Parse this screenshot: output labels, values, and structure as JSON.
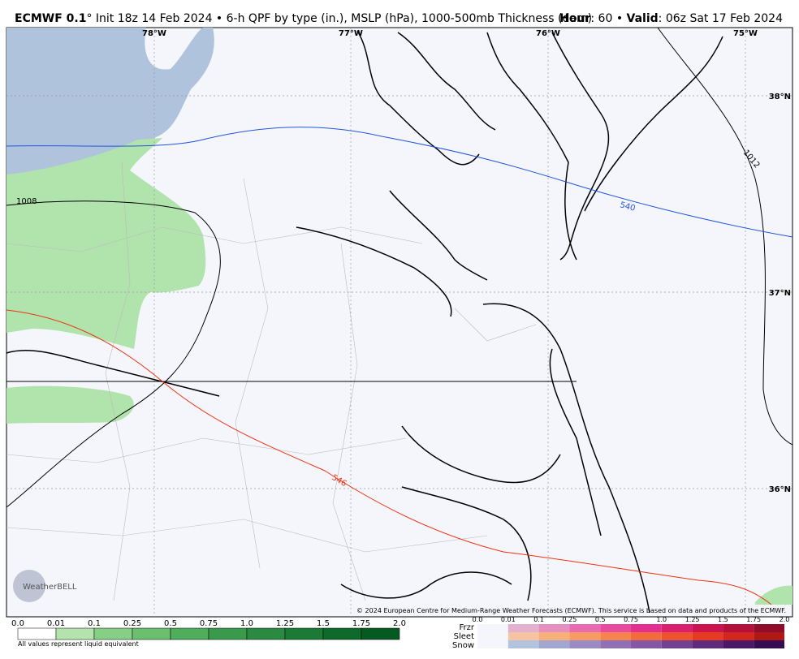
{
  "header": {
    "model": "ECMWF 0.1",
    "title": "° Init 18z 14 Feb 2024 • 6-h QPF by type (in.), MSLP (hPa), 1000-500mb Thickness (dam)",
    "hour_label": "Hour",
    "hour": ": 60 • ",
    "valid_label": "Valid",
    "valid": ": 06z Sat 17 Feb 2024"
  },
  "map": {
    "longitudes": [
      "78°W",
      "77°W",
      "76°W",
      "75°W"
    ],
    "latitudes": [
      "38°N",
      "37°N",
      "36°N"
    ],
    "contour_labels": [
      "1008",
      "1012",
      "540",
      "546"
    ],
    "logo": "WeatherBELL",
    "credit": "© 2024 European Centre for Medium-Range Weather Forecasts (ECMWF). This service is based on data and products of the ECMWF."
  },
  "legend": {
    "qpf_labels": [
      "0.0",
      "0.01",
      "0.1",
      "0.25",
      "0.5",
      "0.75",
      "1.0",
      "1.25",
      "1.5",
      "1.75",
      "2.0"
    ],
    "note": "All values represent liquid equivalent",
    "types": [
      "Frzr",
      "Sleet",
      "Snow"
    ],
    "type_labels": [
      "0.0",
      "0.01",
      "0.1",
      "0.25",
      "0.5",
      "0.75",
      "1.0",
      "1.25",
      "1.5",
      "1.75",
      "2.0"
    ]
  }
}
